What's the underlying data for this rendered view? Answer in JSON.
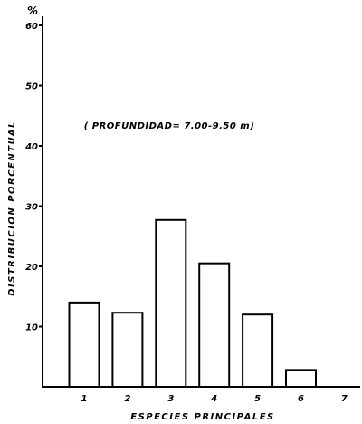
{
  "chart_data": {
    "type": "bar",
    "categories": [
      "1",
      "2",
      "3",
      "4",
      "5",
      "6",
      "7"
    ],
    "values": [
      14,
      12.3,
      27.7,
      20.5,
      12,
      2.8,
      0
    ],
    "xlabel": "ESPECIES PRINCIPALES",
    "ylabel": "DISTRIBUCION PORCENTUAL",
    "yunit": "%",
    "annotation": "( PROFUNDIDAD= 7.00-9.50 m)",
    "ylim": [
      0,
      60
    ],
    "yticks": [
      10,
      20,
      30,
      40,
      50,
      60
    ],
    "grid": false,
    "colors": {
      "bar_fill": "#ffffff",
      "ink": "#000000"
    }
  }
}
